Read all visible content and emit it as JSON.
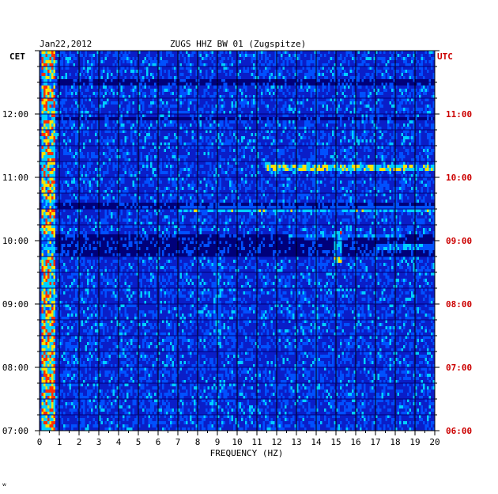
{
  "chart_data": {
    "type": "heatmap",
    "title_date": "Jan22,2012",
    "title": "ZUGS HHZ BW 01 (Zugspitze)",
    "xlabel": "FREQUENCY (HZ)",
    "xlim": [
      0,
      20
    ],
    "x_ticks": [
      "0",
      "1",
      "2",
      "3",
      "4",
      "5",
      "6",
      "7",
      "8",
      "9",
      "10",
      "11",
      "12",
      "13",
      "14",
      "15",
      "16",
      "17",
      "18",
      "19",
      "20"
    ],
    "left_axis_label": "CET",
    "right_axis_label": "UTC",
    "left_ticks": [
      "12:00",
      "11:00",
      "10:00",
      "09:00",
      "08:00",
      "07:00"
    ],
    "right_ticks": [
      "11:00",
      "10:00",
      "09:00",
      "08:00",
      "07:00",
      "06:00"
    ],
    "time_range_cet": [
      "07:00",
      "13:00"
    ],
    "grid": true,
    "colors": {
      "background": "#0a1ec8",
      "band": "#00007a",
      "low_intensity": "#0050ff",
      "mid_intensity": "#00d0ff",
      "high_intensity": "#ffe000",
      "peak_intensity": "#ff3000",
      "utc_text": "#cc0000",
      "axis_text": "#000000"
    },
    "features": [
      {
        "kind": "low-frequency band",
        "freq_hz": [
          0.1,
          0.8
        ],
        "time_cet": [
          "07:00",
          "13:00"
        ],
        "intensity": 0.95
      },
      {
        "kind": "narrow band",
        "freq_hz": [
          13.9,
          14.1
        ],
        "time_cet": [
          "07:00",
          "13:00"
        ],
        "intensity": 0.5
      },
      {
        "kind": "narrow band",
        "freq_hz": [
          8.8,
          9.2
        ],
        "time_cet": [
          "08:20",
          "10:00"
        ],
        "intensity": 0.55
      },
      {
        "kind": "burst",
        "freq_hz": [
          14.9,
          15.3
        ],
        "time_cet": [
          "09:40",
          "10:10"
        ],
        "intensity": 0.9
      },
      {
        "kind": "line",
        "freq_hz": [
          11.5,
          20
        ],
        "time_cet": "11:09",
        "intensity": 0.8
      },
      {
        "kind": "line",
        "freq_hz": [
          7,
          20
        ],
        "time_cet": "10:30",
        "intensity": 0.7
      },
      {
        "kind": "line",
        "freq_hz": [
          12.6,
          18.5
        ],
        "time_cet": "10:04",
        "intensity": 0.8
      },
      {
        "kind": "line",
        "freq_hz": [
          17,
          20
        ],
        "time_cet": "09:54",
        "intensity": 0.85
      },
      {
        "kind": "dark band",
        "time_cet": [
          "09:45",
          "10:07"
        ]
      },
      {
        "kind": "dark line",
        "time_cet": "12:30"
      },
      {
        "kind": "dark line",
        "time_cet": "11:55"
      },
      {
        "kind": "dark line",
        "time_cet": "10:33"
      }
    ]
  },
  "footer_mark": "w"
}
